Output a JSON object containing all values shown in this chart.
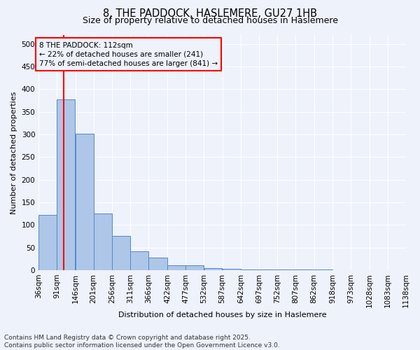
{
  "title_line1": "8, THE PADDOCK, HASLEMERE, GU27 1HB",
  "title_line2": "Size of property relative to detached houses in Haslemere",
  "xlabel": "Distribution of detached houses by size in Haslemere",
  "ylabel": "Number of detached properties",
  "bar_values": [
    122,
    378,
    302,
    125,
    75,
    42,
    27,
    10,
    10,
    5,
    3,
    2,
    1,
    1,
    1,
    1,
    0,
    0,
    0,
    0
  ],
  "bin_edges": [
    36,
    91,
    146,
    201,
    256,
    311,
    366,
    422,
    477,
    532,
    587,
    642,
    697,
    752,
    807,
    862,
    918,
    973,
    1028,
    1083,
    1138
  ],
  "bin_labels": [
    "36sqm",
    "91sqm",
    "146sqm",
    "201sqm",
    "256sqm",
    "311sqm",
    "366sqm",
    "422sqm",
    "477sqm",
    "532sqm",
    "587sqm",
    "642sqm",
    "697sqm",
    "752sqm",
    "807sqm",
    "862sqm",
    "918sqm",
    "973sqm",
    "1028sqm",
    "1083sqm",
    "1138sqm"
  ],
  "bar_color": "#aec6e8",
  "bar_edge_color": "#5588cc",
  "red_line_x": 112,
  "annotation_line1": "8 THE PADDOCK: 112sqm",
  "annotation_line2": "← 22% of detached houses are smaller (241)",
  "annotation_line3": "77% of semi-detached houses are larger (841) →",
  "ylim": [
    0,
    520
  ],
  "yticks": [
    0,
    50,
    100,
    150,
    200,
    250,
    300,
    350,
    400,
    450,
    500
  ],
  "footer_line1": "Contains HM Land Registry data © Crown copyright and database right 2025.",
  "footer_line2": "Contains public sector information licensed under the Open Government Licence v3.0.",
  "bg_color": "#eef2fb",
  "title_fontsize": 10.5,
  "subtitle_fontsize": 9,
  "axis_label_fontsize": 8,
  "tick_fontsize": 7.5,
  "annotation_fontsize": 7.5,
  "footer_fontsize": 6.5
}
